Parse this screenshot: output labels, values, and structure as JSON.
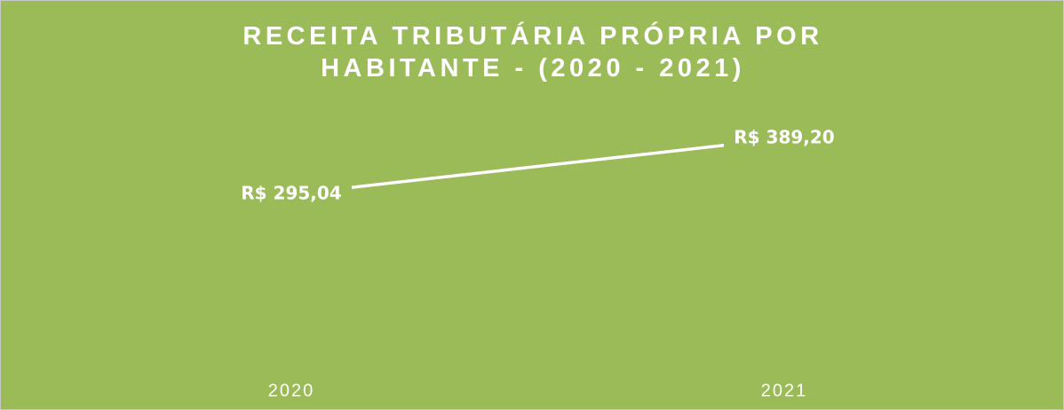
{
  "chart_data": {
    "type": "line",
    "title": "RECEITA TRIBUTÁRIA PRÓPRIA POR HABITANTE - (2020 - 2021)",
    "categories": [
      "2020",
      "2021"
    ],
    "values": [
      295.04,
      389.2
    ],
    "value_labels": [
      "R$ 295,04",
      "R$ 389,20"
    ],
    "color": "#ffffff"
  }
}
